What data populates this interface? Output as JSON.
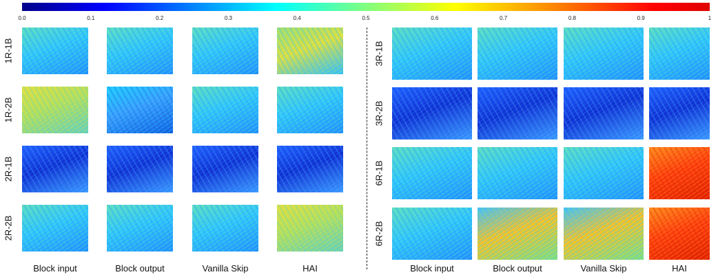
{
  "colorbar": {
    "ticks": [
      {
        "value": 0,
        "label": "0.0"
      },
      0.1,
      0.2,
      0.3,
      0.4,
      0.5,
      0.6,
      0.7,
      0.8,
      0.9,
      1
    ]
  },
  "left_panel": {
    "rows": [
      "1R-1B",
      "1R-2B",
      "2R-1B",
      "2R-2B"
    ],
    "columns": [
      "Block input",
      "Block output",
      "Vanilla Skip",
      "HAI"
    ]
  },
  "right_panel": {
    "rows": [
      "3R-1B",
      "3R-2B",
      "6R-1B",
      "6R-2B"
    ],
    "columns": [
      "Block input",
      "Block output",
      "Vanilla Skip",
      "HAI"
    ]
  }
}
